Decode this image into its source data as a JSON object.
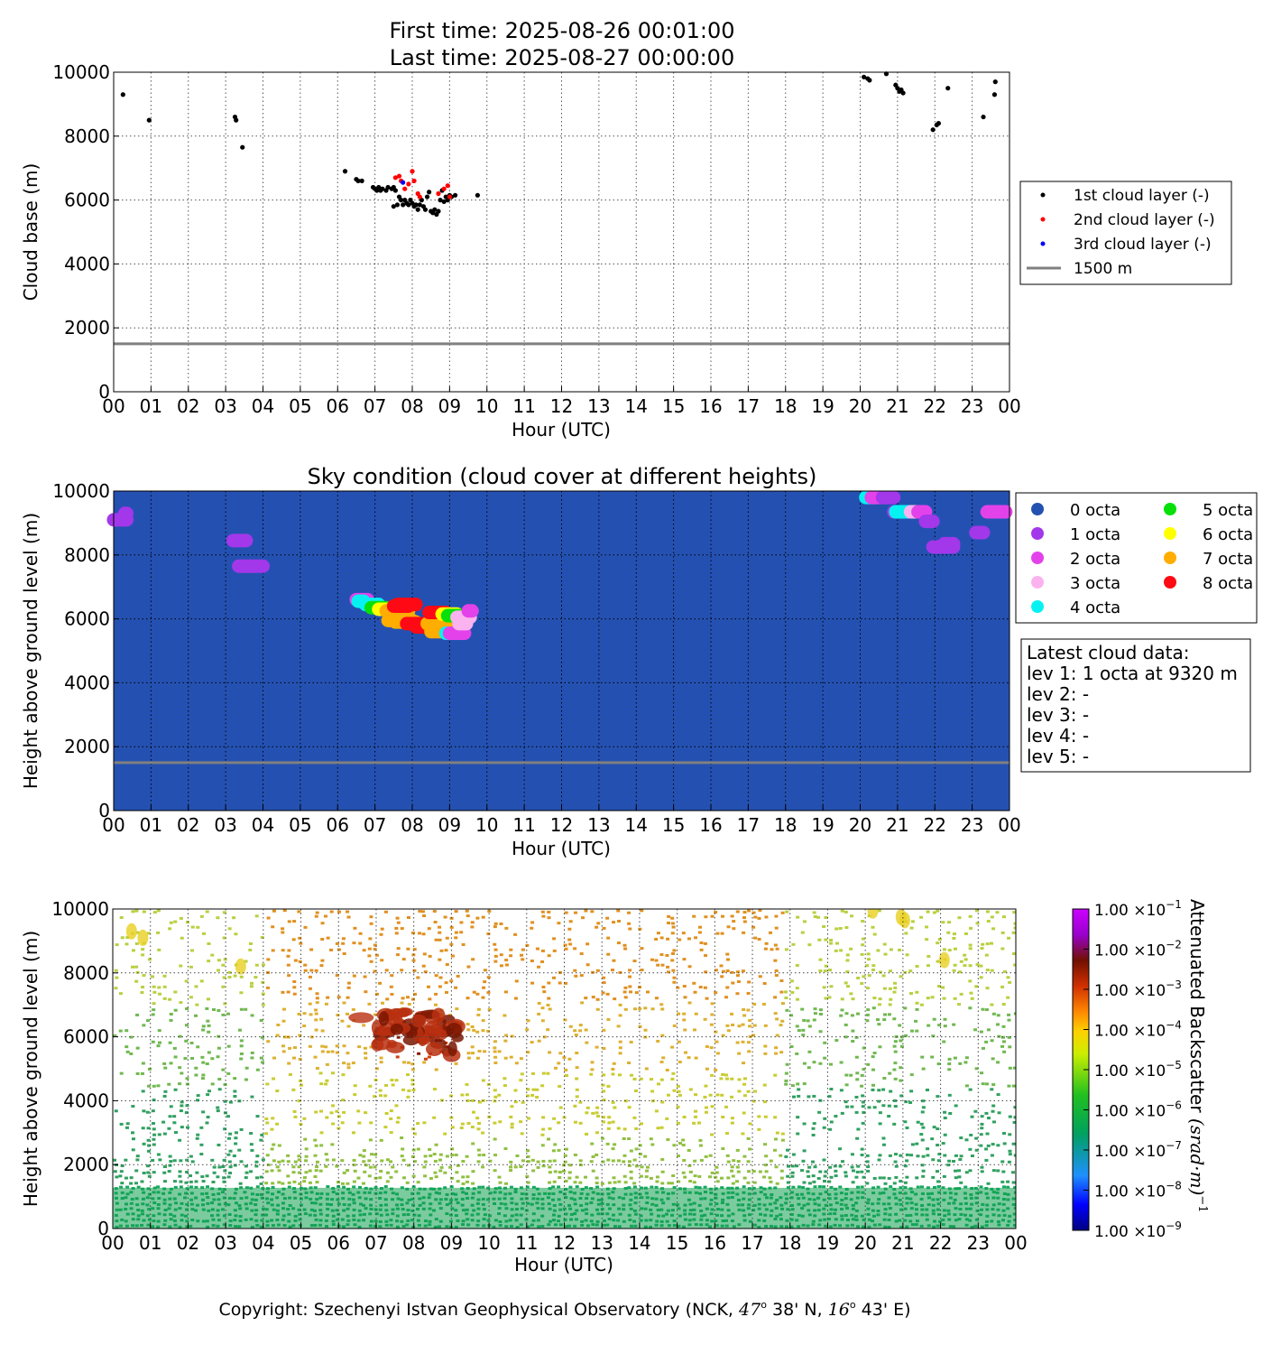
{
  "header": {
    "title_line1": "First time: 2025-08-26 00:01:00",
    "title_line2": "Last time: 2025-08-27 00:00:00"
  },
  "footer": {
    "copyright_prefix": "Copyright: Szechenyi Istvan Geophysical Observatory (NCK, ",
    "lat_deg": "47",
    "lat_min": " 38' N, ",
    "lon_deg": "16",
    "lon_min": " 43' E)"
  },
  "hour_ticks": [
    "00",
    "01",
    "02",
    "03",
    "04",
    "05",
    "06",
    "07",
    "08",
    "09",
    "10",
    "11",
    "12",
    "13",
    "14",
    "15",
    "16",
    "17",
    "18",
    "19",
    "20",
    "21",
    "22",
    "23",
    "00"
  ],
  "colors": {
    "layer1": "#000000",
    "layer2": "#ff0000",
    "layer3": "#0000ff",
    "ref_line": "#808080",
    "sky_background": "#2451b1",
    "octa": [
      "#2451b1",
      "#a337ea",
      "#e342ea",
      "#fbb3ef",
      "#06f2f2",
      "#08e00a",
      "#ffff00",
      "#ffad00",
      "#ff0a14"
    ]
  },
  "chart_data": [
    {
      "type": "scatter",
      "title": "",
      "xlabel": "Hour (UTC)",
      "ylabel": "Cloud base (m)",
      "xlim": [
        0,
        24
      ],
      "ylim": [
        0,
        10000
      ],
      "yticks": [
        "0",
        "2000",
        "4000",
        "6000",
        "8000",
        "10000"
      ],
      "grid": true,
      "legend_position": "right",
      "reference_line": {
        "name": "1500 m",
        "y": 1500
      },
      "series": [
        {
          "name": "1st cloud layer (-)",
          "points": [
            [
              0.25,
              9300
            ],
            [
              0.95,
              8500
            ],
            [
              3.25,
              8600
            ],
            [
              3.28,
              8500
            ],
            [
              3.45,
              7650
            ],
            [
              6.2,
              6900
            ],
            [
              6.5,
              6650
            ],
            [
              6.55,
              6600
            ],
            [
              6.65,
              6600
            ],
            [
              6.95,
              6400
            ],
            [
              7.0,
              6350
            ],
            [
              7.05,
              6300
            ],
            [
              7.1,
              6400
            ],
            [
              7.15,
              6300
            ],
            [
              7.2,
              6350
            ],
            [
              7.3,
              6300
            ],
            [
              7.35,
              6400
            ],
            [
              7.45,
              6350
            ],
            [
              7.5,
              6400
            ],
            [
              7.55,
              6300
            ],
            [
              7.5,
              5800
            ],
            [
              7.6,
              5850
            ],
            [
              7.65,
              6100
            ],
            [
              7.7,
              6000
            ],
            [
              7.75,
              5850
            ],
            [
              7.8,
              6000
            ],
            [
              7.85,
              5900
            ],
            [
              7.9,
              5850
            ],
            [
              7.95,
              6000
            ],
            [
              8.0,
              5900
            ],
            [
              8.05,
              5800
            ],
            [
              8.1,
              5850
            ],
            [
              8.15,
              5700
            ],
            [
              8.2,
              5850
            ],
            [
              8.25,
              6000
            ],
            [
              8.3,
              5800
            ],
            [
              8.35,
              5700
            ],
            [
              8.4,
              6100
            ],
            [
              8.45,
              6250
            ],
            [
              8.5,
              5650
            ],
            [
              8.55,
              5600
            ],
            [
              8.6,
              5700
            ],
            [
              8.65,
              5550
            ],
            [
              8.7,
              5650
            ],
            [
              8.75,
              6000
            ],
            [
              8.8,
              6300
            ],
            [
              8.85,
              5950
            ],
            [
              8.9,
              6100
            ],
            [
              8.95,
              6000
            ],
            [
              9.0,
              6150
            ],
            [
              9.05,
              6100
            ],
            [
              9.15,
              6150
            ],
            [
              9.75,
              6150
            ],
            [
              20.1,
              9850
            ],
            [
              20.2,
              9800
            ],
            [
              20.25,
              9750
            ],
            [
              20.7,
              9950
            ],
            [
              20.95,
              9600
            ],
            [
              21.0,
              9500
            ],
            [
              21.05,
              9400
            ],
            [
              21.1,
              9450
            ],
            [
              21.15,
              9350
            ],
            [
              21.95,
              8200
            ],
            [
              22.05,
              8350
            ],
            [
              22.1,
              8400
            ],
            [
              22.35,
              9500
            ],
            [
              23.3,
              8600
            ],
            [
              23.6,
              9300
            ],
            [
              23.62,
              9700
            ]
          ]
        },
        {
          "name": "2nd cloud layer (-)",
          "points": [
            [
              7.55,
              6700
            ],
            [
              7.65,
              6750
            ],
            [
              7.7,
              6600
            ],
            [
              7.8,
              6350
            ],
            [
              7.9,
              6500
            ],
            [
              8.0,
              6900
            ],
            [
              8.05,
              6600
            ],
            [
              8.15,
              6200
            ],
            [
              8.2,
              6100
            ],
            [
              8.7,
              6200
            ],
            [
              8.85,
              6350
            ],
            [
              8.95,
              6450
            ],
            [
              9.0,
              6100
            ]
          ]
        },
        {
          "name": "3rd cloud layer (-)",
          "points": [
            [
              7.75,
              6550
            ]
          ]
        }
      ]
    },
    {
      "type": "scatter",
      "title": "Sky condition (cloud cover at different heights)",
      "xlabel": "Hour (UTC)",
      "ylabel": "Height above ground level (m)",
      "xlim": [
        0,
        24
      ],
      "ylim": [
        0,
        10000
      ],
      "yticks": [
        "0",
        "2000",
        "4000",
        "6000",
        "8000",
        "10000"
      ],
      "grid": true,
      "legend_position": "right",
      "legend": [
        "0 octa",
        "1 octa",
        "2 octa",
        "3 octa",
        "4 octa",
        "5 octa",
        "6 octa",
        "7 octa",
        "8 octa"
      ],
      "reference_line": {
        "y": 1500
      },
      "segments": [
        [
          0.0,
          0.35,
          9100,
          1
        ],
        [
          0.3,
          0.35,
          9300,
          1
        ],
        [
          3.2,
          3.55,
          8450,
          1
        ],
        [
          3.35,
          4.0,
          7650,
          1
        ],
        [
          6.5,
          6.8,
          6600,
          2
        ],
        [
          6.55,
          6.7,
          6550,
          4
        ],
        [
          6.75,
          7.1,
          6450,
          4
        ],
        [
          6.9,
          7.3,
          6350,
          5
        ],
        [
          7.1,
          7.6,
          6300,
          6
        ],
        [
          7.3,
          7.9,
          6250,
          7
        ],
        [
          7.5,
          7.9,
          6400,
          8
        ],
        [
          7.6,
          8.1,
          6450,
          8
        ],
        [
          7.35,
          8.0,
          5950,
          7
        ],
        [
          7.55,
          8.1,
          5900,
          7
        ],
        [
          7.85,
          8.4,
          5850,
          8
        ],
        [
          8.1,
          8.5,
          5750,
          8
        ],
        [
          8.4,
          9.0,
          5850,
          7
        ],
        [
          8.5,
          9.2,
          5600,
          7
        ],
        [
          8.9,
          9.3,
          5550,
          4
        ],
        [
          9.0,
          9.4,
          5550,
          2
        ],
        [
          8.45,
          8.9,
          6200,
          8
        ],
        [
          8.8,
          9.2,
          6150,
          6
        ],
        [
          8.95,
          9.35,
          6100,
          5
        ],
        [
          9.2,
          9.55,
          6050,
          3
        ],
        [
          9.25,
          9.45,
          5850,
          3
        ],
        [
          9.5,
          9.6,
          6250,
          2
        ],
        [
          20.15,
          20.4,
          9800,
          4
        ],
        [
          20.3,
          20.8,
          9800,
          2
        ],
        [
          20.6,
          20.9,
          9800,
          1
        ],
        [
          20.9,
          21.1,
          9350,
          1
        ],
        [
          20.95,
          21.6,
          9350,
          4
        ],
        [
          21.35,
          21.7,
          9350,
          3
        ],
        [
          21.55,
          21.75,
          9350,
          2
        ],
        [
          21.75,
          21.95,
          9050,
          1
        ],
        [
          21.95,
          22.5,
          8250,
          1
        ],
        [
          22.25,
          22.5,
          8350,
          1
        ],
        [
          23.1,
          23.3,
          8700,
          1
        ],
        [
          23.4,
          23.9,
          9350,
          2
        ]
      ],
      "latest_cloud_data": {
        "heading": "Latest cloud data:",
        "lines": [
          "lev 1: 1 octa at 9320 m",
          "lev 2: -",
          "lev 3: -",
          "lev 4: -",
          "lev 5: -"
        ]
      }
    },
    {
      "type": "heatmap",
      "title": "",
      "xlabel": "Hour (UTC)",
      "ylabel": "Height above ground level (m)",
      "xlim": [
        0,
        24
      ],
      "ylim": [
        0,
        10000
      ],
      "yticks": [
        "0",
        "2000",
        "4000",
        "6000",
        "8000",
        "10000"
      ],
      "grid": true,
      "colorbar": {
        "label": "Attenuated Backscatter",
        "unit": "(srad·m)",
        "unit_exponent": "−1",
        "scale": "log",
        "range": [
          1e-09,
          0.1
        ],
        "tick_mantissa": "1.00 ×10",
        "tick_exponents": [
          "−9",
          "−8",
          "−7",
          "−6",
          "−5",
          "−4",
          "−3",
          "−2",
          "−1"
        ]
      },
      "features": [
        {
          "name": "surface layer",
          "hours": [
            0,
            24
          ],
          "height": [
            0,
            1500
          ],
          "level": 1e-07
        },
        {
          "name": "cloud layer",
          "hours": [
            6.5,
            9.3
          ],
          "height": [
            5500,
            7000
          ],
          "level": 0.001
        },
        {
          "name": "upper cloud",
          "hours": [
            20.0,
            22.5
          ],
          "height": [
            8200,
            10000
          ],
          "level": 1e-05
        }
      ]
    }
  ]
}
